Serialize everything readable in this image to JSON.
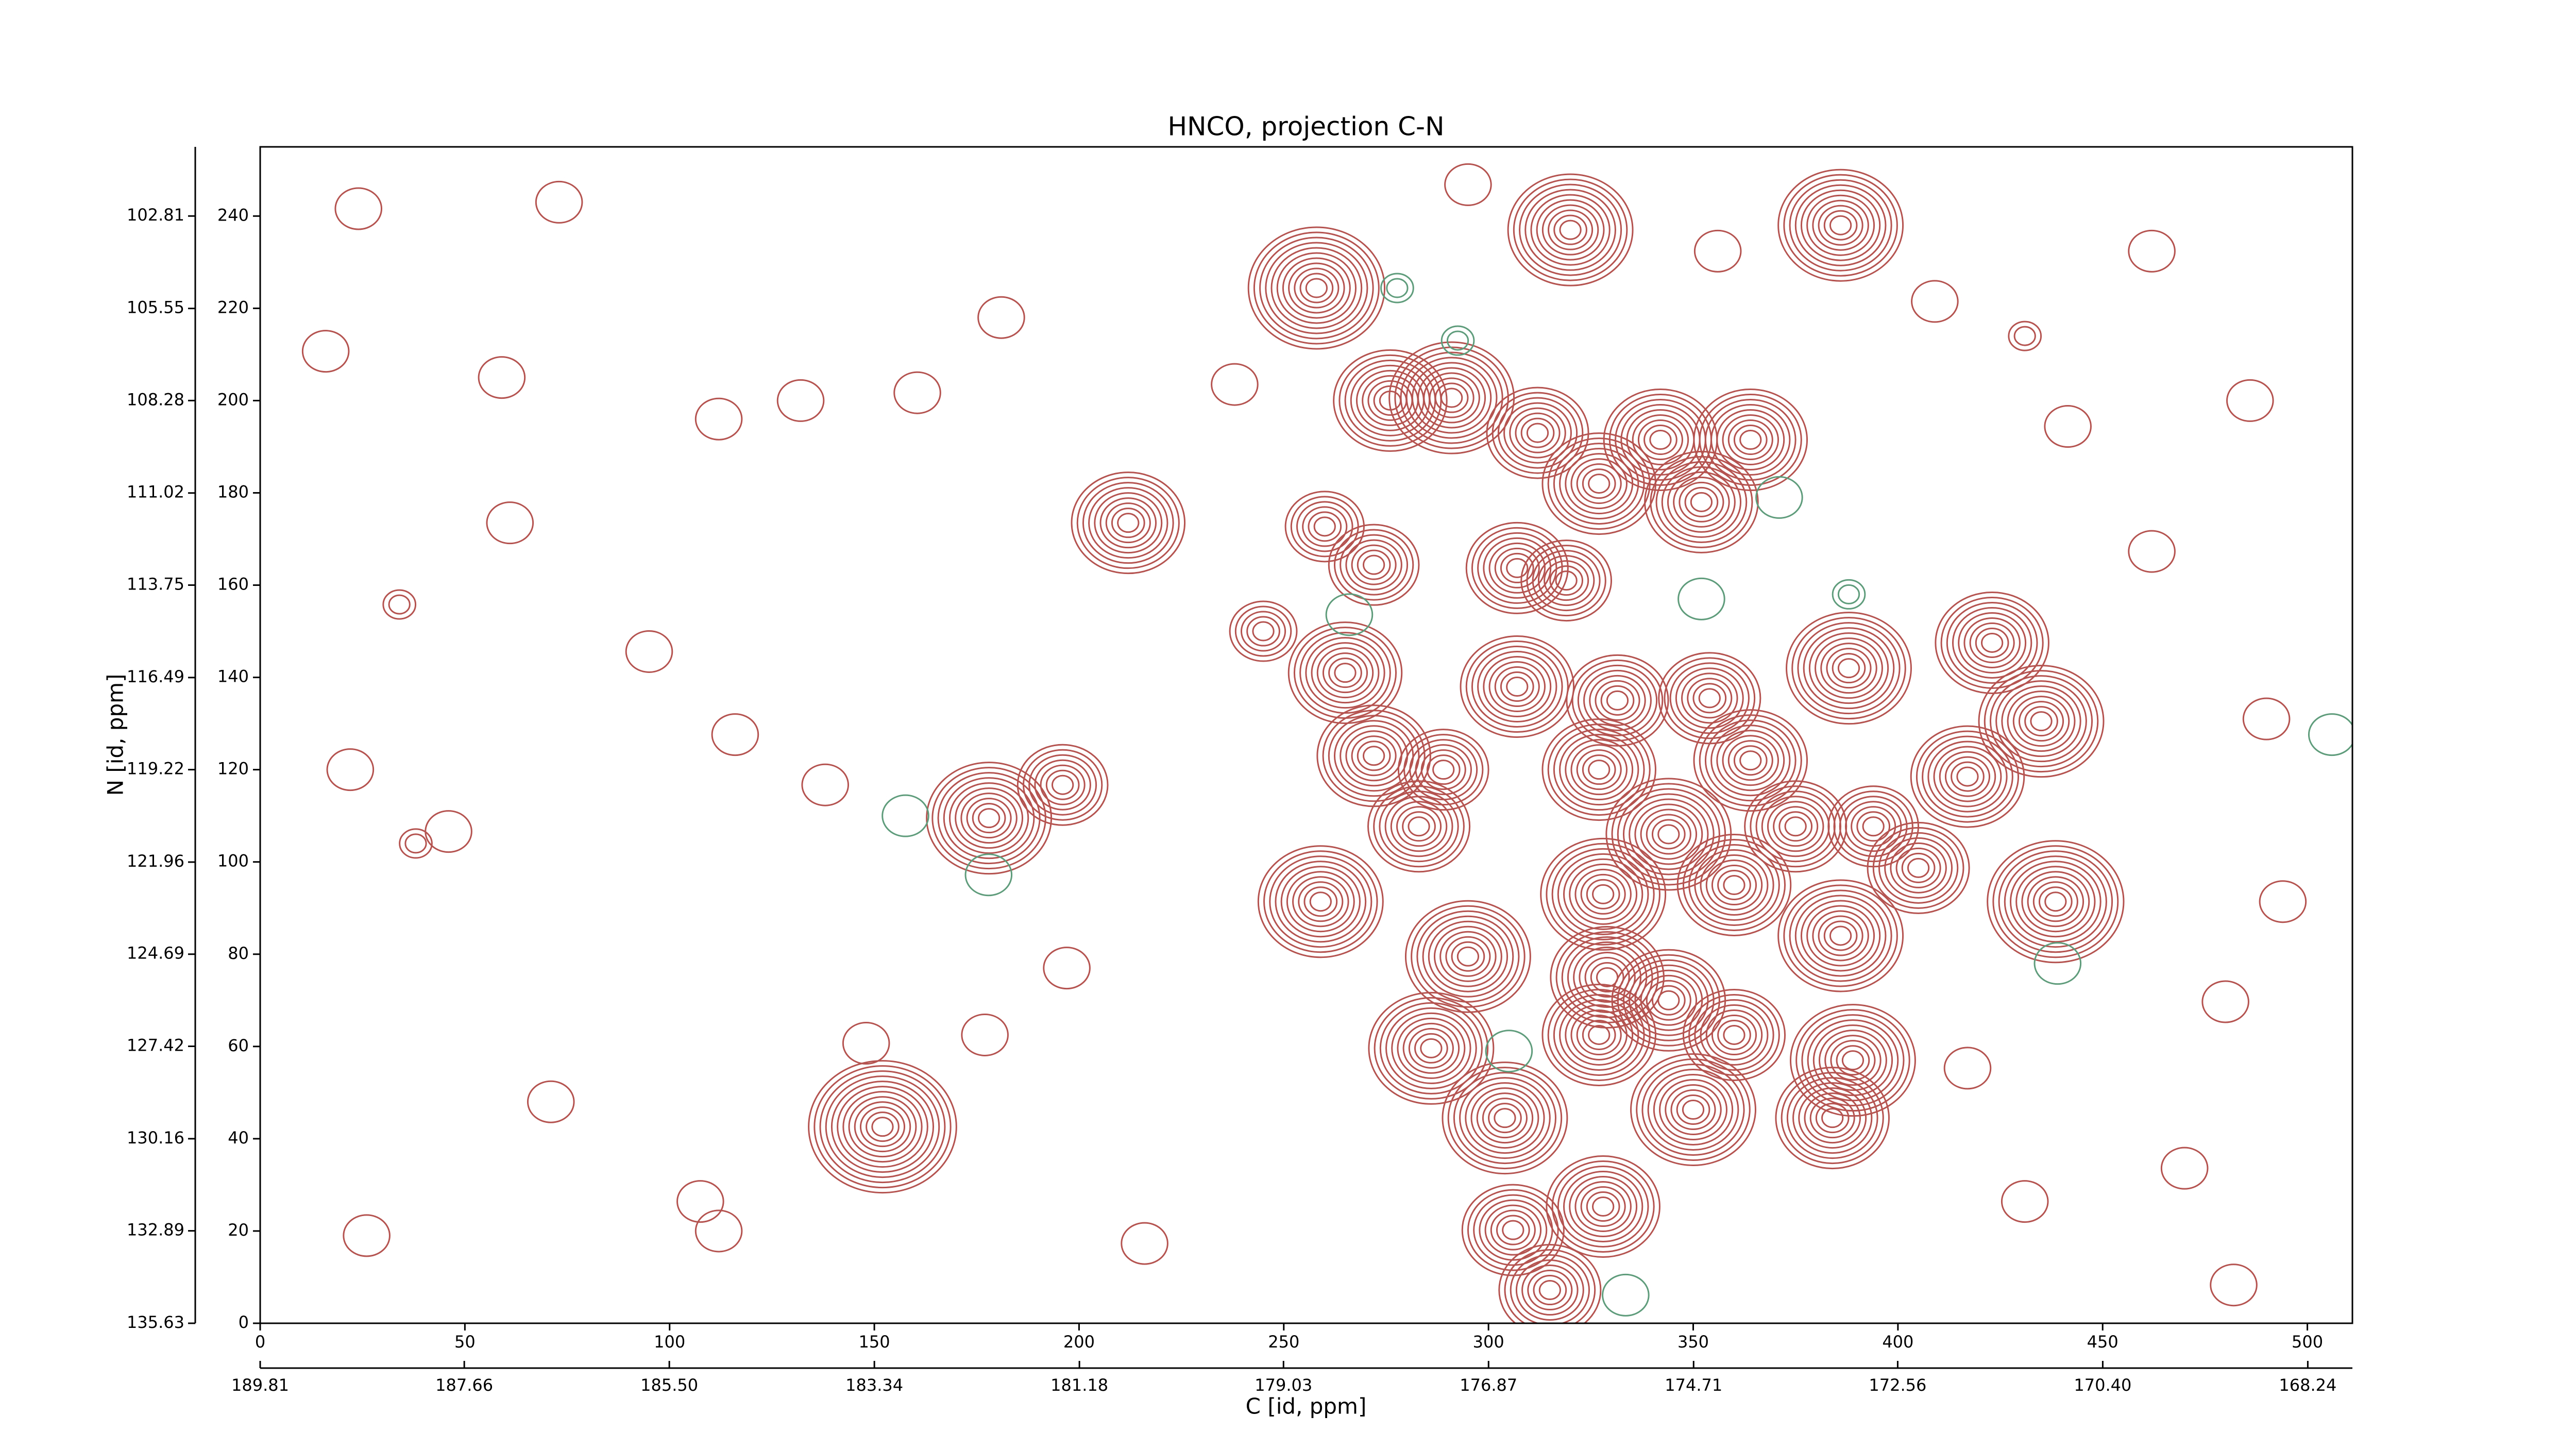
{
  "chart_data": {
    "type": "contour",
    "title": "HNCO, projection C-N",
    "xlabel": "C [id, ppm]",
    "ylabel": "N [id, ppm]",
    "xlim": [
      0,
      511
    ],
    "xticks": [
      0,
      50,
      100,
      150,
      200,
      250,
      300,
      350,
      400,
      450,
      500
    ],
    "x2lim": [
      189.81,
      167.77
    ],
    "x2ticks": [
      189.81,
      187.66,
      {
        "value": 185.5,
        "label": "185.50"
      },
      183.34,
      181.18,
      179.03,
      176.87,
      174.71,
      172.56,
      {
        "value": 170.4,
        "label": "170.40"
      },
      168.24
    ],
    "ylim": [
      0,
      255
    ],
    "yticks": [
      0,
      20,
      40,
      60,
      80,
      100,
      120,
      140,
      160,
      180,
      200,
      220,
      240
    ],
    "y2lim": [
      135.63,
      100.76
    ],
    "y2ticks": [
      135.63,
      132.89,
      130.16,
      127.42,
      124.69,
      121.96,
      119.22,
      116.49,
      113.75,
      111.02,
      108.28,
      105.55,
      102.81
    ],
    "series": [
      {
        "color": "#b4534f",
        "x": [
          258,
          320,
          386,
          291,
          276,
          312,
          342,
          364,
          327,
          352,
          212,
          260,
          272,
          307,
          319,
          245,
          265,
          307,
          331.5,
          354,
          388,
          423,
          435,
          272,
          289,
          327,
          364,
          417,
          178,
          196,
          283,
          344,
          375,
          394,
          259,
          438.5,
          328,
          360,
          405,
          295,
          329,
          386,
          344,
          286,
          327,
          360,
          389,
          152,
          304,
          350,
          384,
          328,
          306,
          315,
          73,
          24,
          59,
          34,
          61,
          112,
          132,
          38,
          160.5,
          181,
          16,
          95,
          116,
          22,
          46,
          71,
          26,
          112,
          148,
          197,
          177,
          431,
          409,
          486,
          441.5,
          462,
          490,
          494,
          480,
          470,
          431,
          482,
          417,
          238,
          138,
          107.5,
          216,
          462,
          356,
          295
        ],
        "y": [
          224.4,
          237,
          238,
          200.6,
          200,
          193,
          191.5,
          191.5,
          182,
          178,
          173.5,
          172.7,
          164.4,
          163.7,
          161,
          150,
          141,
          138,
          135,
          135.5,
          142,
          147.5,
          130.5,
          123,
          120,
          120,
          122,
          118.5,
          109.5,
          116.7,
          107.7,
          106,
          107.7,
          107.7,
          91.4,
          91.4,
          93,
          95,
          98.7,
          79.5,
          75,
          84,
          70,
          59.6,
          62.5,
          62.5,
          57,
          42.6,
          44.5,
          46.3,
          44.5,
          25.3,
          20.2,
          7.2,
          243,
          241.6,
          205,
          155.8,
          173.5,
          196,
          200,
          104,
          201.7,
          218,
          210.7,
          145.6,
          127.6,
          120,
          106.6,
          48,
          19,
          20,
          60.7,
          77,
          62.5,
          214,
          221.5,
          200,
          194.4,
          167.3,
          131,
          91.4,
          69.7,
          33.6,
          26.4,
          8.3,
          55.3,
          203.5,
          116.7,
          26.4,
          17.3,
          232.4,
          232.4,
          246.8
        ],
        "levels": [
          11,
          10,
          10,
          10,
          9,
          8,
          9,
          9,
          9,
          9,
          9,
          6,
          7,
          8,
          7,
          5,
          9,
          9,
          8,
          8,
          10,
          9,
          10,
          9,
          7,
          9,
          9,
          9,
          10,
          7,
          8,
          10,
          8,
          7,
          10,
          11,
          10,
          9,
          8,
          10,
          9,
          10,
          9,
          10,
          9,
          8,
          10,
          12,
          10,
          10,
          9,
          9,
          8,
          8,
          1,
          1,
          1,
          2,
          1,
          1,
          1,
          2,
          1,
          1,
          1,
          1,
          1,
          1,
          1,
          1,
          1,
          1,
          1,
          1,
          1,
          2,
          1,
          1,
          1,
          1,
          1,
          1,
          1,
          1,
          1,
          1,
          1,
          1,
          1,
          1,
          1,
          1,
          1,
          1
        ]
      },
      {
        "color": "#5e9c7c",
        "x": [
          157.6,
          277.7,
          292.5,
          371,
          388,
          506,
          439,
          177.9,
          333.5,
          305,
          352,
          266
        ],
        "y": [
          110,
          224.4,
          213,
          179,
          158,
          127.6,
          78,
          97.2,
          6.1,
          59,
          157,
          153.6
        ],
        "levels": [
          1,
          2,
          2,
          1,
          2,
          1,
          1,
          1,
          1,
          1,
          1,
          1
        ]
      }
    ]
  }
}
